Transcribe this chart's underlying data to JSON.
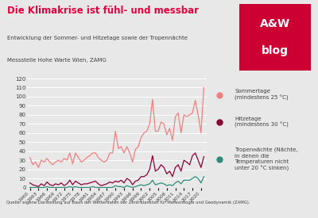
{
  "title": "Die Klimakrise ist fühl- und messbar",
  "subtitle1": "Entwicklung der Sommer- und Hitzetage sowie der Tropennächte",
  "subtitle2": "Messstelle Hohe Warte Wien, ZAMG",
  "source": "Quelle: eigene Darstellung auf Basis der Wetterdaten der Zentralanstalt für Meteorologie und Geodynamik (ZAMG).",
  "logo_text1": "A&W",
  "logo_text2": "blog",
  "years": [
    1960,
    1961,
    1962,
    1963,
    1964,
    1965,
    1966,
    1967,
    1968,
    1969,
    1970,
    1971,
    1972,
    1973,
    1974,
    1975,
    1976,
    1977,
    1978,
    1979,
    1980,
    1981,
    1982,
    1983,
    1984,
    1985,
    1986,
    1987,
    1988,
    1989,
    1990,
    1991,
    1992,
    1993,
    1994,
    1995,
    1996,
    1997,
    1998,
    1999,
    2000,
    2001,
    2002,
    2003,
    2004,
    2005,
    2006,
    2007,
    2008,
    2009,
    2010,
    2011,
    2012,
    2013,
    2014,
    2015,
    2016,
    2017,
    2018,
    2019,
    2020,
    2021
  ],
  "sommertage": [
    33,
    25,
    28,
    22,
    30,
    28,
    32,
    28,
    25,
    28,
    30,
    28,
    32,
    30,
    38,
    26,
    38,
    33,
    28,
    30,
    33,
    35,
    38,
    38,
    33,
    30,
    28,
    30,
    38,
    38,
    62,
    43,
    45,
    38,
    45,
    38,
    28,
    42,
    45,
    55,
    60,
    62,
    70,
    97,
    62,
    62,
    72,
    70,
    58,
    65,
    52,
    78,
    82,
    60,
    80,
    78,
    80,
    82,
    96,
    80,
    60,
    110
  ],
  "hitzetage": [
    5,
    3,
    2,
    1,
    4,
    2,
    6,
    3,
    2,
    4,
    3,
    5,
    2,
    4,
    8,
    3,
    7,
    5,
    3,
    4,
    4,
    5,
    6,
    7,
    4,
    2,
    3,
    4,
    6,
    5,
    7,
    6,
    8,
    5,
    10,
    8,
    3,
    7,
    8,
    12,
    12,
    14,
    20,
    35,
    18,
    20,
    25,
    22,
    15,
    18,
    12,
    22,
    25,
    18,
    30,
    28,
    25,
    35,
    38,
    30,
    22,
    34
  ],
  "tropennachte": [
    0,
    0,
    0,
    0,
    0,
    0,
    1,
    0,
    0,
    0,
    0,
    0,
    0,
    0,
    1,
    0,
    1,
    0,
    0,
    0,
    0,
    0,
    1,
    0,
    0,
    0,
    0,
    0,
    0,
    0,
    2,
    1,
    1,
    0,
    2,
    1,
    0,
    1,
    2,
    3,
    2,
    3,
    4,
    8,
    3,
    4,
    5,
    4,
    2,
    3,
    2,
    5,
    7,
    4,
    8,
    8,
    8,
    10,
    12,
    10,
    5,
    12
  ],
  "bg_color": "#e8e8e8",
  "white_color": "#ffffff",
  "sommertage_color": "#f08080",
  "hitzetage_color": "#8b0038",
  "tropennachte_color": "#2e8b7a",
  "title_color": "#e8003c",
  "text_color": "#404040",
  "logo_bg": "#cc0033",
  "ylim": [
    0,
    120
  ],
  "yticks": [
    0,
    10,
    20,
    30,
    40,
    50,
    60,
    70,
    80,
    90,
    100,
    110,
    120
  ],
  "xtick_years": [
    1960,
    1963,
    1966,
    1969,
    1972,
    1975,
    1978,
    1981,
    1984,
    1987,
    1990,
    1993,
    1996,
    1999,
    2002,
    2005,
    2008,
    2011,
    2014,
    2017,
    2020
  ]
}
